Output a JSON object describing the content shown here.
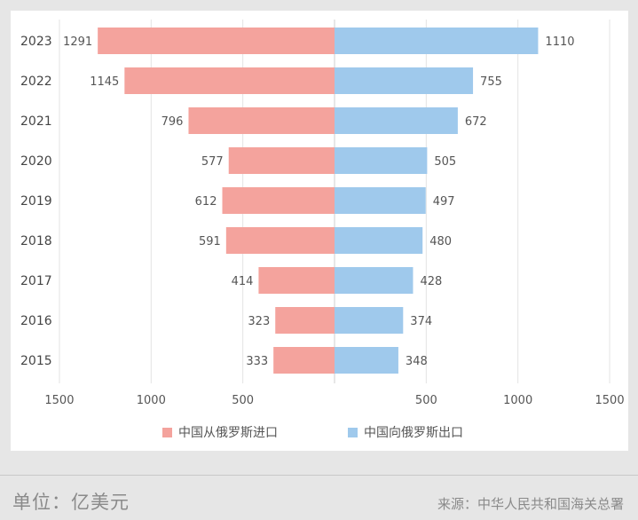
{
  "chart_data": {
    "type": "bar",
    "orientation": "horizontal-diverging",
    "categories": [
      "2023",
      "2022",
      "2021",
      "2020",
      "2019",
      "2018",
      "2017",
      "2016",
      "2015"
    ],
    "series": [
      {
        "name": "中国从俄罗斯进口",
        "side": "left",
        "color": "#f4a39d",
        "values": [
          1291,
          1145,
          796,
          577,
          612,
          591,
          414,
          323,
          333
        ]
      },
      {
        "name": "中国向俄罗斯出口",
        "side": "right",
        "color": "#9fc9ec",
        "values": [
          1110,
          755,
          672,
          505,
          497,
          480,
          428,
          374,
          348
        ]
      }
    ],
    "x_ticks": [
      "1500",
      "1000",
      "500",
      "",
      "500",
      "1000",
      "1500"
    ],
    "xlim": [
      -1500,
      1500
    ],
    "grid": true,
    "legend_position": "bottom"
  },
  "footer": {
    "unit": "单位：亿美元",
    "source": "来源：中华人民共和国海关总署"
  }
}
